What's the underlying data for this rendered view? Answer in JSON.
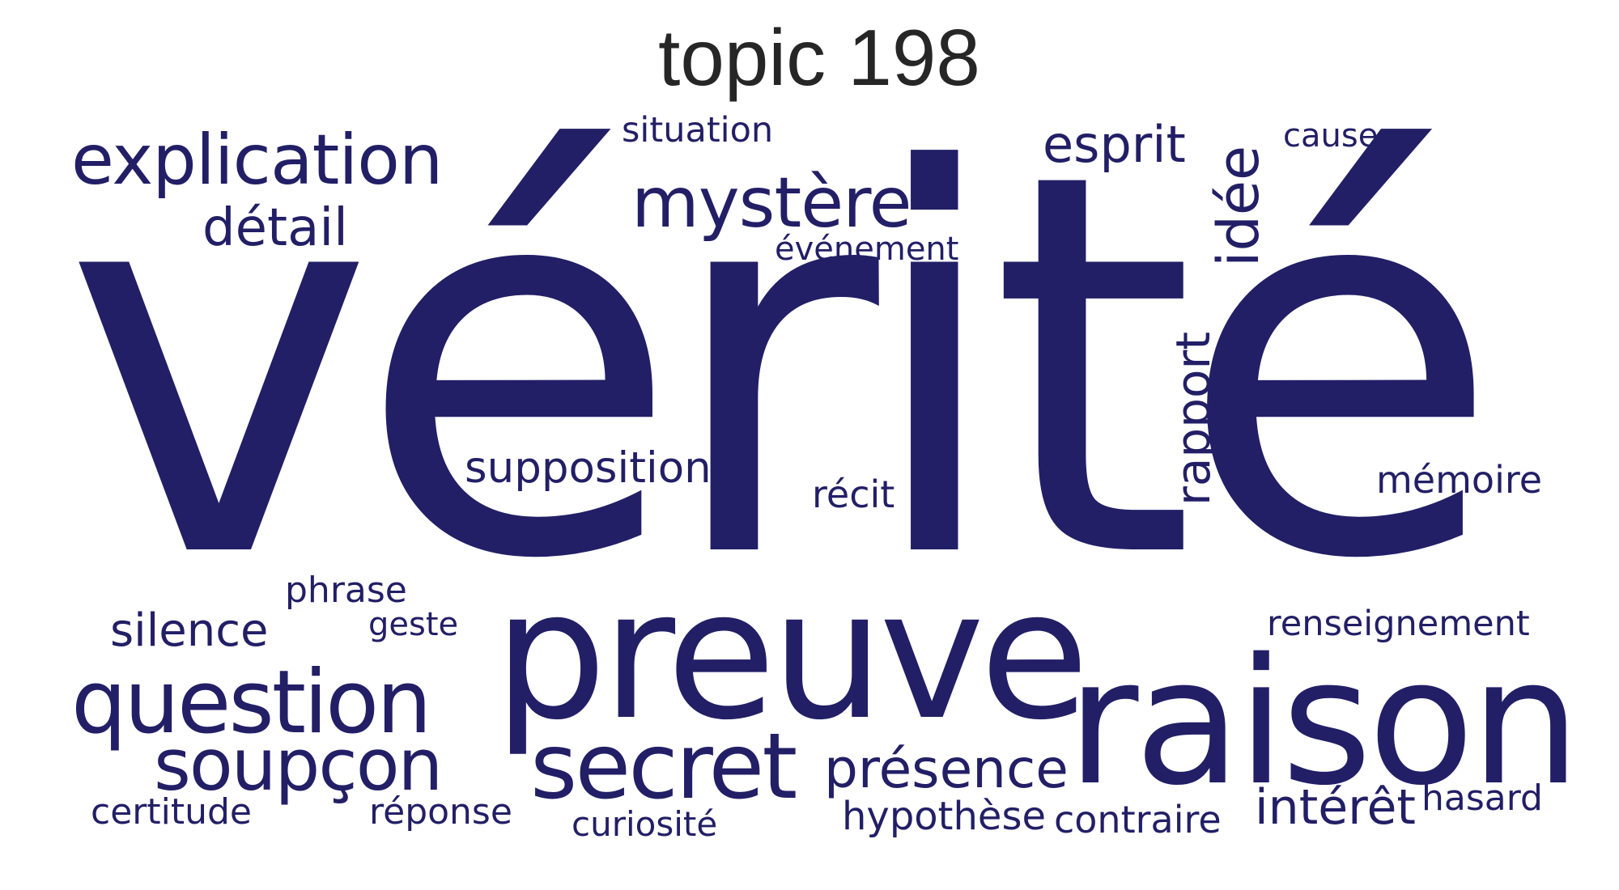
{
  "title": "topic 198",
  "word_color": "#221f66",
  "words": {
    "verite": "vérité",
    "preuve": "preuve",
    "raison": "raison",
    "question": "question",
    "secret": "secret",
    "explication": "explication",
    "mystere": "mystère",
    "soupcon": "soupçon",
    "presence": "présence",
    "detail": "détail",
    "esprit": "esprit",
    "idee": "idée",
    "rapport": "rapport",
    "interet": "intérêt",
    "supposition": "supposition",
    "silence": "silence",
    "memoire": "mémoire",
    "hypothese": "hypothèse",
    "contraire": "contraire",
    "hasard": "hasard",
    "renseignement": "renseignement",
    "evenement": "événement",
    "situation": "situation",
    "recit": "récit",
    "phrase": "phrase",
    "geste": "geste",
    "certitude": "certitude",
    "reponse": "réponse",
    "curiosite": "curiosité",
    "cause": "cause"
  }
}
